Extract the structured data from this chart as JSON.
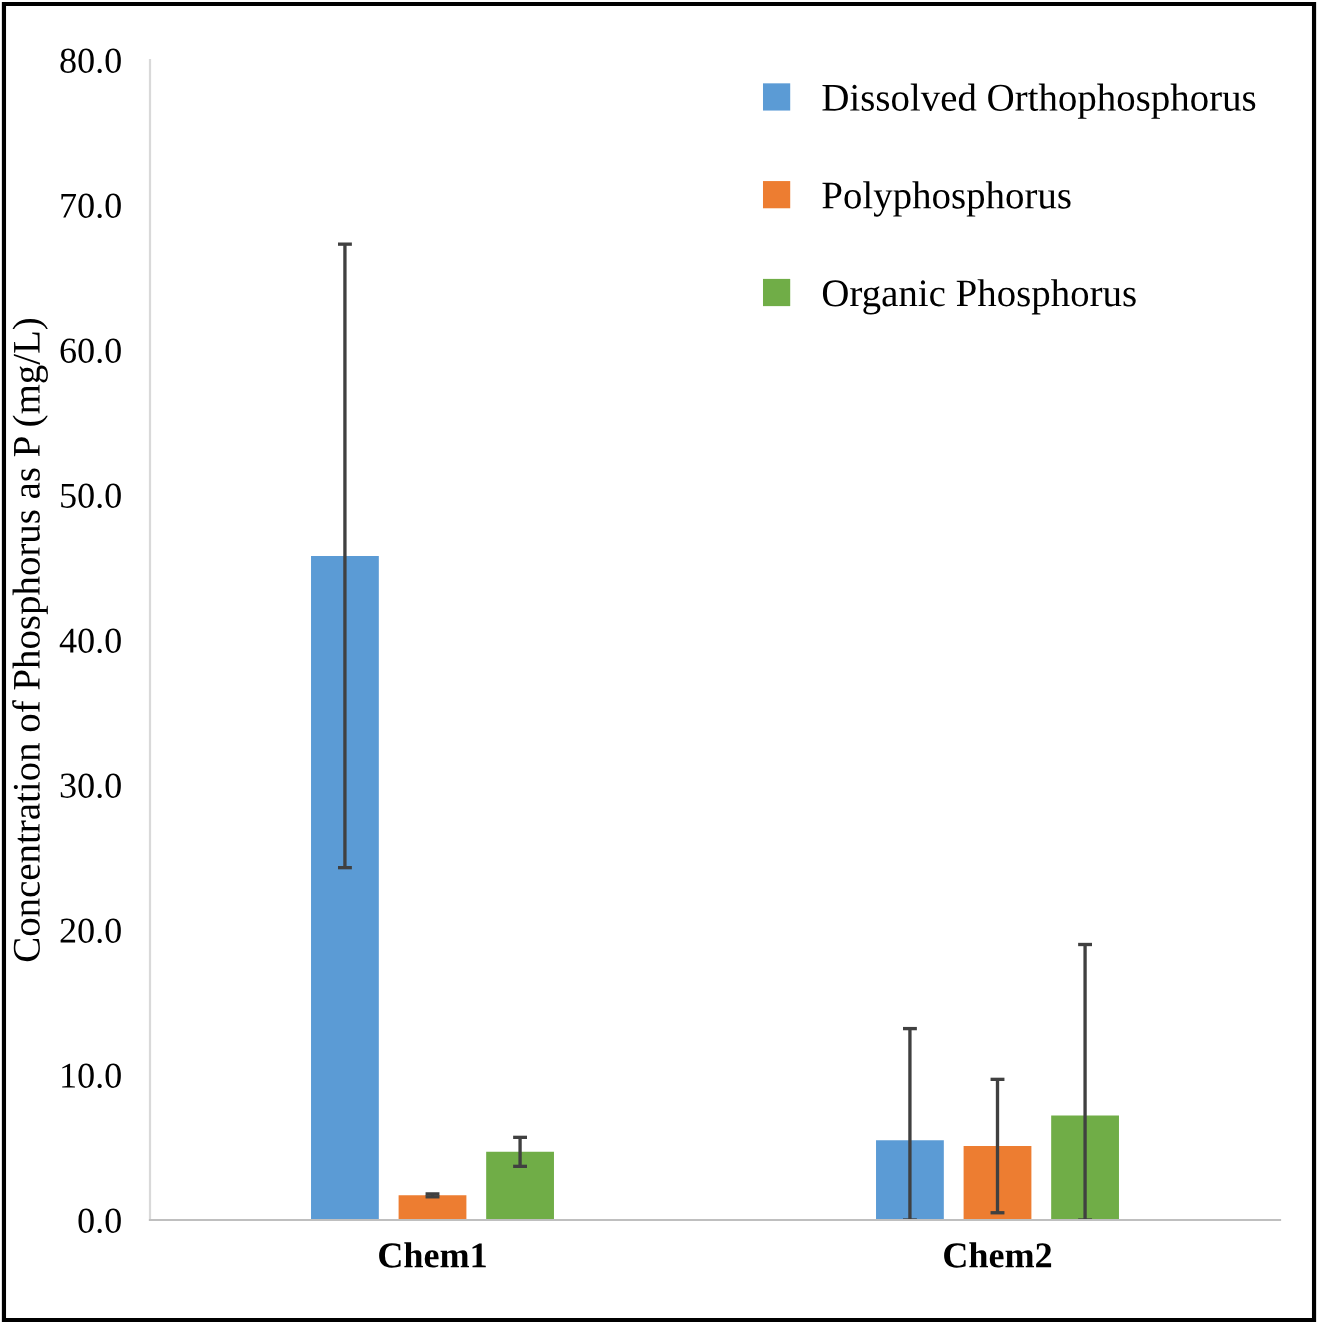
{
  "chart_data": {
    "type": "bar",
    "ylabel": "Concentration of Phosphorus as P (mg/L)",
    "categories": [
      "Chem1",
      "Chem2"
    ],
    "series": [
      {
        "name": "Dissolved Orthophosphorus",
        "color": "#5b9bd5",
        "values": [
          45.8,
          5.5
        ],
        "errors": [
          21.5,
          [
            0,
            13.2
          ]
        ]
      },
      {
        "name": "Polyphosphorus",
        "color": "#ed7d31",
        "values": [
          1.7,
          5.1
        ],
        "errors": [
          0.1,
          4.6
        ]
      },
      {
        "name": "Organic Phosphorus",
        "color": "#70ad47",
        "values": [
          4.7,
          7.2
        ],
        "errors": [
          1.0,
          [
            0,
            19.0
          ]
        ]
      }
    ],
    "ylim": [
      0,
      80
    ],
    "yticks": [
      {
        "value": 0,
        "label": "0.0"
      },
      {
        "value": 10,
        "label": "10.0"
      },
      {
        "value": 20,
        "label": "20.0"
      },
      {
        "value": 30,
        "label": "30.0"
      },
      {
        "value": 40,
        "label": "40.0"
      },
      {
        "value": 50,
        "label": "50.0"
      },
      {
        "value": 60,
        "label": "60.0"
      },
      {
        "value": 70,
        "label": "70.0"
      },
      {
        "value": 80,
        "label": "80.0"
      }
    ],
    "grid": false,
    "legend": "top right"
  }
}
